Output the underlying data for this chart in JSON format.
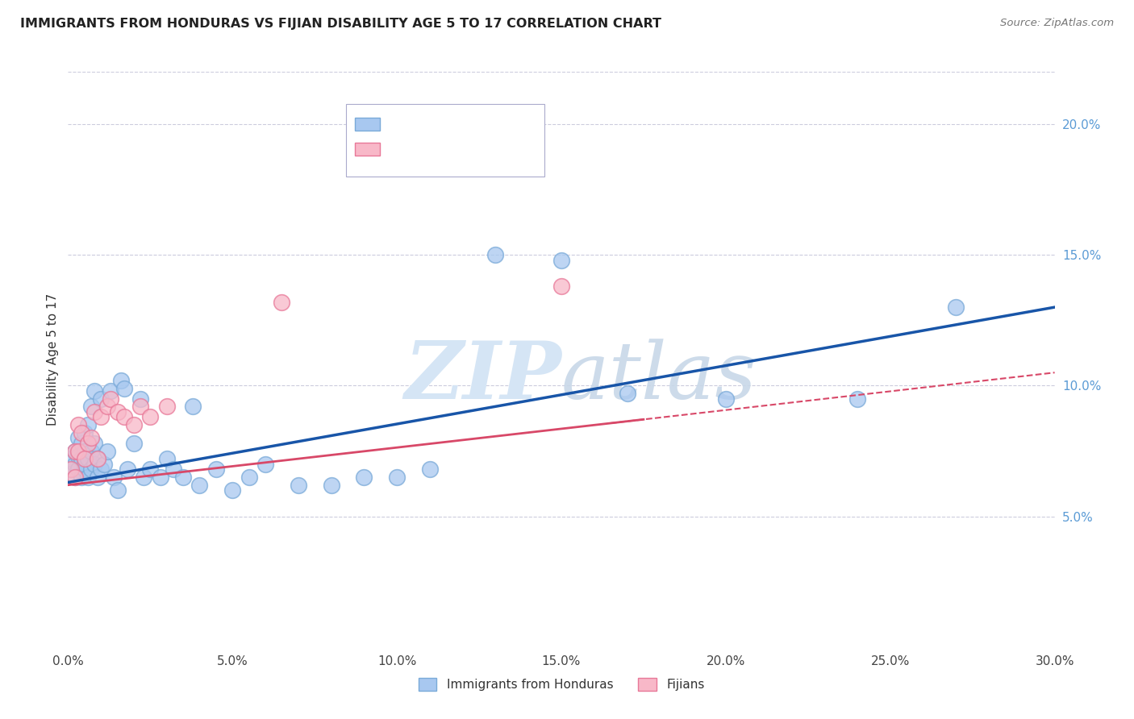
{
  "title": "IMMIGRANTS FROM HONDURAS VS FIJIAN DISABILITY AGE 5 TO 17 CORRELATION CHART",
  "source": "Source: ZipAtlas.com",
  "ylabel": "Disability Age 5 to 17",
  "xlim": [
    0.0,
    0.3
  ],
  "ylim": [
    0.0,
    0.22
  ],
  "xticks": [
    0.0,
    0.05,
    0.1,
    0.15,
    0.2,
    0.25,
    0.3
  ],
  "xticklabels": [
    "0.0%",
    "5.0%",
    "10.0%",
    "15.0%",
    "20.0%",
    "25.0%",
    "30.0%"
  ],
  "yticks_right": [
    0.05,
    0.1,
    0.15,
    0.2
  ],
  "yticklabels_right": [
    "5.0%",
    "10.0%",
    "15.0%",
    "20.0%"
  ],
  "blue_color": "#A8C8F0",
  "blue_edge_color": "#7AAAD8",
  "pink_color": "#F8B8C8",
  "pink_edge_color": "#E87898",
  "blue_line_color": "#1855A8",
  "pink_line_color": "#D84868",
  "background_color": "#FFFFFF",
  "grid_color": "#CCCCDD",
  "watermark_color": "#D5E5F5",
  "honduras_x": [
    0.001,
    0.001,
    0.002,
    0.002,
    0.002,
    0.003,
    0.003,
    0.003,
    0.004,
    0.004,
    0.004,
    0.005,
    0.005,
    0.005,
    0.005,
    0.006,
    0.006,
    0.006,
    0.007,
    0.007,
    0.007,
    0.008,
    0.008,
    0.008,
    0.009,
    0.009,
    0.01,
    0.01,
    0.011,
    0.012,
    0.013,
    0.014,
    0.015,
    0.016,
    0.017,
    0.018,
    0.02,
    0.022,
    0.023,
    0.025,
    0.028,
    0.03,
    0.032,
    0.035,
    0.038,
    0.04,
    0.045,
    0.05,
    0.055,
    0.06,
    0.07,
    0.08,
    0.09,
    0.1,
    0.11,
    0.13,
    0.15,
    0.17,
    0.2,
    0.24,
    0.27
  ],
  "honduras_y": [
    0.068,
    0.072,
    0.065,
    0.07,
    0.075,
    0.068,
    0.073,
    0.08,
    0.065,
    0.072,
    0.078,
    0.068,
    0.07,
    0.075,
    0.082,
    0.065,
    0.072,
    0.085,
    0.068,
    0.075,
    0.092,
    0.07,
    0.078,
    0.098,
    0.065,
    0.072,
    0.068,
    0.095,
    0.07,
    0.075,
    0.098,
    0.065,
    0.06,
    0.102,
    0.099,
    0.068,
    0.078,
    0.095,
    0.065,
    0.068,
    0.065,
    0.072,
    0.068,
    0.065,
    0.092,
    0.062,
    0.068,
    0.06,
    0.065,
    0.07,
    0.062,
    0.062,
    0.065,
    0.065,
    0.068,
    0.15,
    0.148,
    0.097,
    0.095,
    0.095,
    0.13
  ],
  "fijian_x": [
    0.001,
    0.002,
    0.002,
    0.003,
    0.003,
    0.004,
    0.005,
    0.006,
    0.007,
    0.008,
    0.009,
    0.01,
    0.012,
    0.013,
    0.015,
    0.017,
    0.02,
    0.022,
    0.025,
    0.03,
    0.065,
    0.15
  ],
  "fijian_y": [
    0.068,
    0.065,
    0.075,
    0.075,
    0.085,
    0.082,
    0.072,
    0.078,
    0.08,
    0.09,
    0.072,
    0.088,
    0.092,
    0.095,
    0.09,
    0.088,
    0.085,
    0.092,
    0.088,
    0.092,
    0.132,
    0.138
  ],
  "blue_trend_x0": 0.0,
  "blue_trend_y0": 0.063,
  "blue_trend_x1": 0.3,
  "blue_trend_y1": 0.13,
  "pink_trend_x0": 0.0,
  "pink_trend_y0": 0.062,
  "pink_trend_x1": 0.3,
  "pink_trend_y1": 0.105
}
